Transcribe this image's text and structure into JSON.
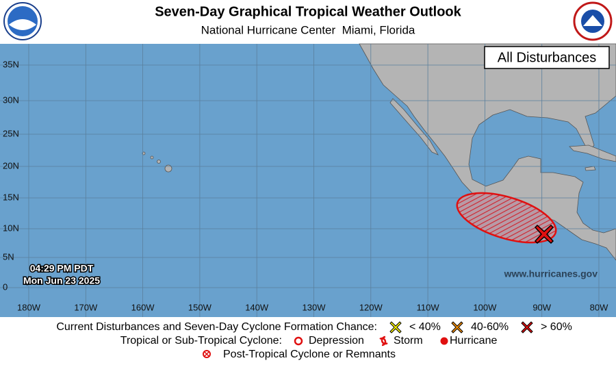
{
  "header": {
    "title": "Seven-Day Graphical Tropical Weather Outlook",
    "subtitle": "National Hurricane Center  Miami, Florida"
  },
  "map": {
    "panel_label": "All Disturbances",
    "lat_labels": [
      "35N",
      "30N",
      "25N",
      "20N",
      "15N",
      "10N",
      "5N",
      "0"
    ],
    "lon_labels": [
      "180W",
      "170W",
      "160W",
      "150W",
      "140W",
      "130W",
      "120W",
      "110W",
      "100W",
      "90W",
      "80W"
    ],
    "time": "04:29 PM PDT",
    "date": "Mon Jun 23 2025",
    "website": "www.hurricanes.gov"
  },
  "legend": {
    "disturbances_label": "Current Disturbances and Seven-Day Cyclone Formation Chance:",
    "low": "< 40%",
    "medium": "40-60%",
    "high": "> 60%",
    "cyclone_label": "Tropical or Sub-Tropical Cyclone:",
    "depression": "Depression",
    "storm": "Storm",
    "hurricane": "Hurricane",
    "post_tropical": "Post-Tropical Cyclone or Remnants"
  }
}
